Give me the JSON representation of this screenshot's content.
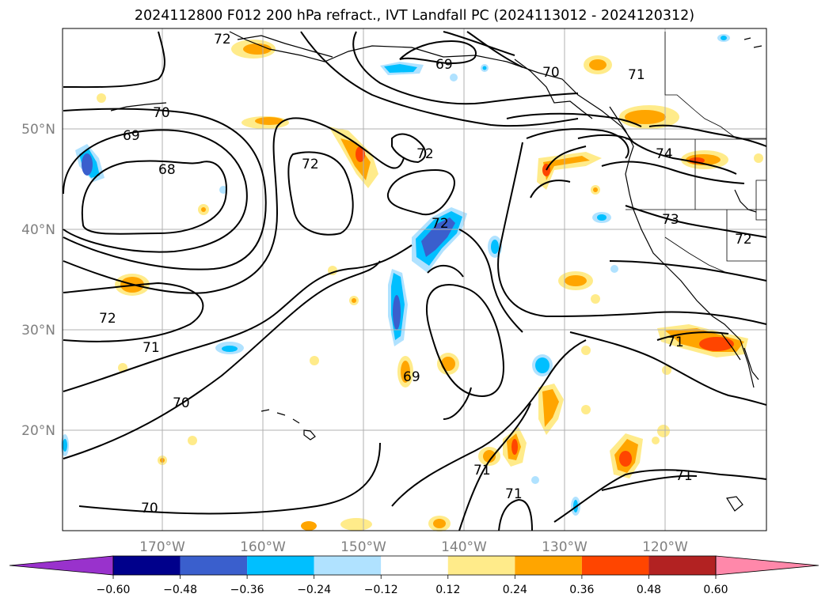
{
  "title": "2024112800 F012 200 hPa refract., IVT Landfall PC (2024113012 - 2024120312)",
  "lat_labels": [
    "50°N",
    "40°N",
    "30°N",
    "20°N"
  ],
  "lon_labels": [
    "170°W",
    "160°W",
    "150°W",
    "140°W",
    "130°W",
    "120°W"
  ],
  "colorbar": {
    "ticks": [
      "−0.60",
      "−0.48",
      "−0.36",
      "−0.24",
      "−0.12",
      "0.12",
      "0.24",
      "0.36",
      "0.48",
      "0.60"
    ],
    "colors": [
      "#9932cc",
      "#00008b",
      "#3a5fcd",
      "#00bfff",
      "#b0e2ff",
      "#ffffff",
      "#ffeb8a",
      "#ffa500",
      "#ff4500",
      "#b22222",
      "#ff88aa"
    ]
  },
  "contour_labels": [
    "72",
    "69",
    "70",
    "71",
    "70",
    "69",
    "68",
    "72",
    "72",
    "74",
    "73",
    "72",
    "72",
    "71",
    "70",
    "72",
    "69",
    "71",
    "71",
    "71",
    "70"
  ],
  "map_colors": {
    "contour": "#000000",
    "grid": "#b0b0b0",
    "coast": "#000000"
  }
}
